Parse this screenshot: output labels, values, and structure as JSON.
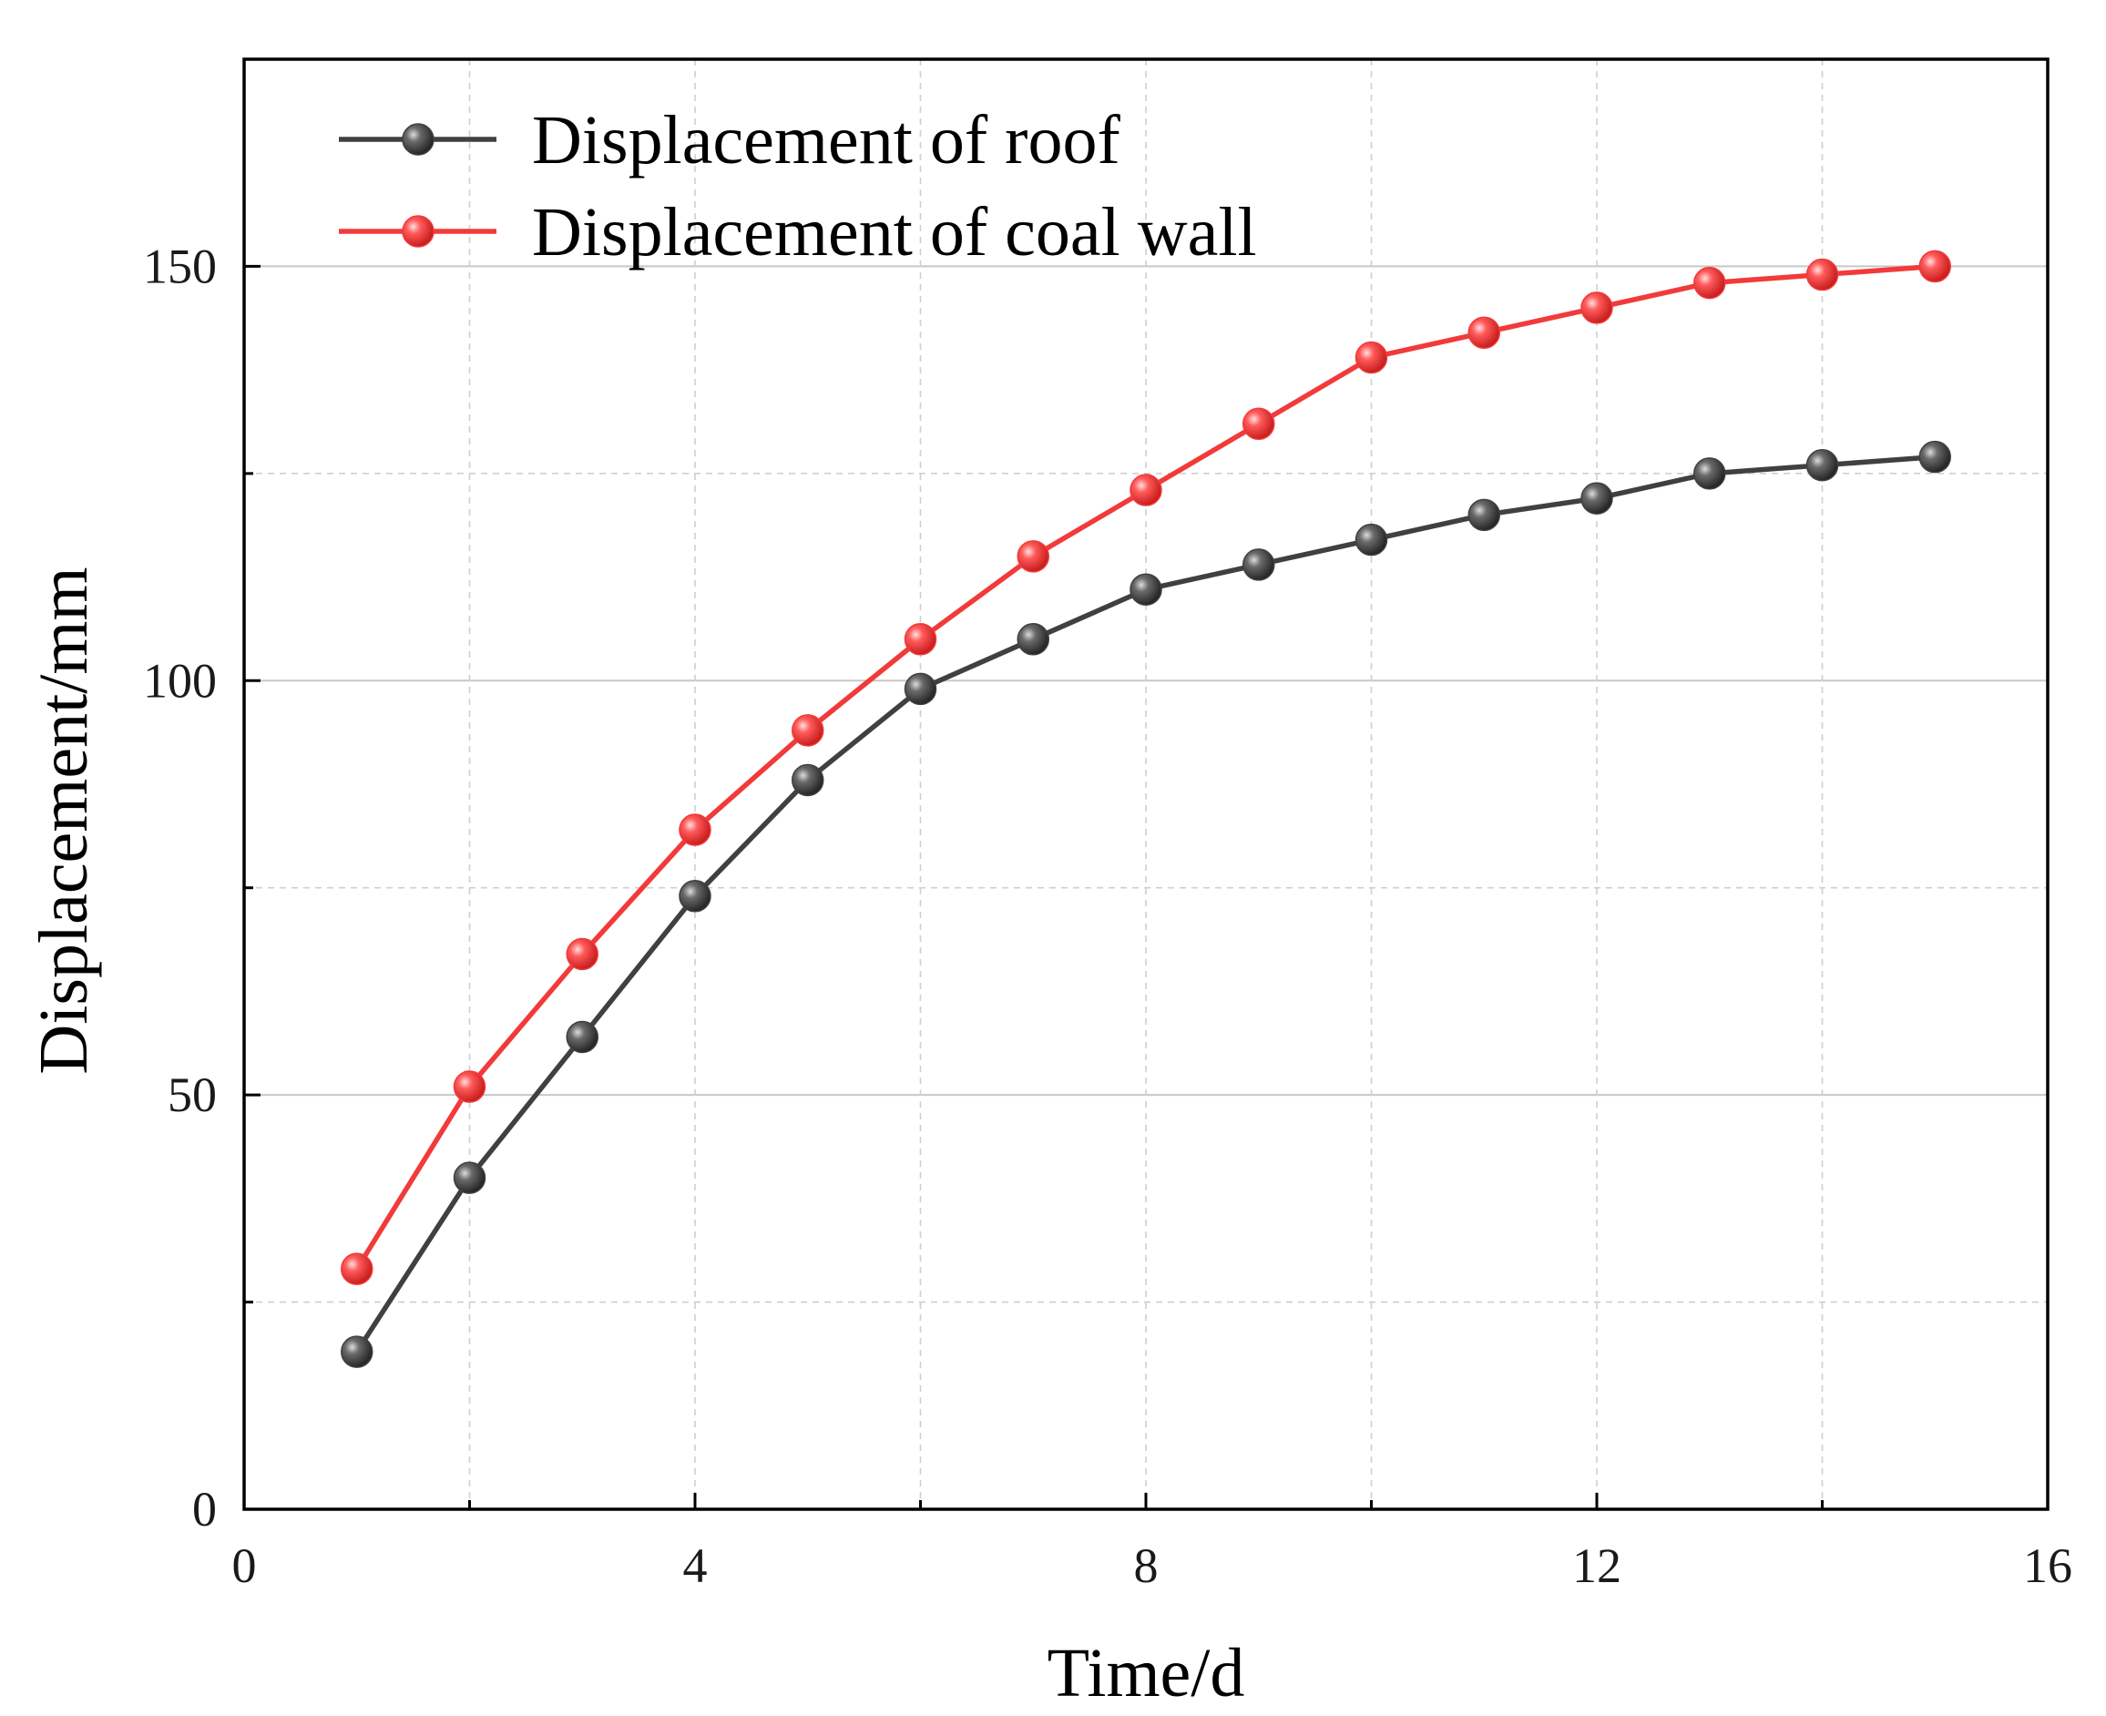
{
  "chart_data": {
    "type": "line",
    "title": "",
    "xlabel": "Time/d",
    "ylabel": "Displacement/mm",
    "xlim": [
      0,
      16
    ],
    "ylim": [
      0,
      175
    ],
    "x_ticks": [
      0,
      4,
      8,
      12,
      16
    ],
    "y_ticks": [
      0,
      50,
      100,
      150
    ],
    "grid": true,
    "legend_position": "top-left",
    "x": [
      1,
      2,
      3,
      4,
      5,
      6,
      7,
      8,
      9,
      10,
      11,
      12,
      13,
      14,
      15
    ],
    "series": [
      {
        "name": "Displacement of roof",
        "color": "#404040",
        "values": [
          19,
          40,
          57,
          74,
          88,
          99,
          105,
          111,
          114,
          117,
          120,
          122,
          125,
          126,
          127
        ]
      },
      {
        "name": "Displacement of coal wall",
        "color": "#f23a3a",
        "values": [
          29,
          51,
          67,
          82,
          94,
          105,
          115,
          123,
          131,
          139,
          142,
          145,
          148,
          149,
          150
        ]
      }
    ]
  }
}
